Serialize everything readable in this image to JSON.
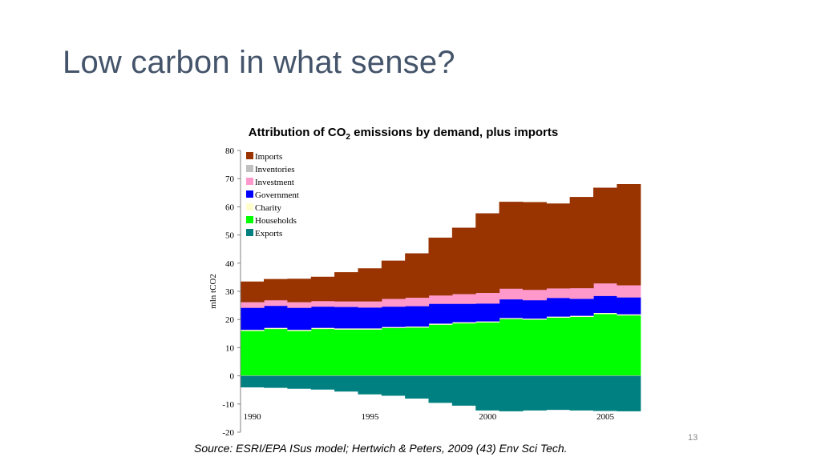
{
  "slide": {
    "title": "Low carbon in what sense?",
    "source": "Source: ESRI/EPA ISus model; Hertwich & Peters, 2009 (43) Env Sci Tech.",
    "page_number": "13"
  },
  "chart_data": {
    "type": "area",
    "title": "Attribution of CO",
    "title_subscript": "2",
    "title_rest": " emissions by demand, plus imports",
    "ylabel": "mln tCO2",
    "xlabel": "",
    "ylim": [
      -20,
      80
    ],
    "yticks": [
      80,
      70,
      60,
      50,
      40,
      30,
      20,
      10,
      0,
      -10,
      -20
    ],
    "xtick_labels": [
      {
        "year": 1990,
        "label": "1990"
      },
      {
        "year": 1995,
        "label": "1995"
      },
      {
        "year": 2000,
        "label": "2000"
      },
      {
        "year": 2005,
        "label": "2005"
      }
    ],
    "x": [
      1990,
      1991,
      1992,
      1993,
      1994,
      1995,
      1996,
      1997,
      1998,
      1999,
      2000,
      2001,
      2002,
      2003,
      2004,
      2005,
      2006
    ],
    "legend_position": "top-left",
    "series": [
      {
        "name": "Exports",
        "color": "#008080",
        "values": [
          -4,
          -4.2,
          -4.5,
          -4.8,
          -5.5,
          -6.5,
          -7,
          -8,
          -9.5,
          -10.5,
          -12.2,
          -12.5,
          -12.2,
          -12,
          -12.2,
          -12.4,
          -12.5
        ]
      },
      {
        "name": "Households",
        "color": "#00ff00",
        "values": [
          16,
          16.7,
          16,
          16.7,
          16.5,
          16.5,
          17,
          17.2,
          18.2,
          18.7,
          19,
          20.2,
          20,
          20.7,
          21,
          22,
          21.5
        ]
      },
      {
        "name": "Charity",
        "color": "#ffffcc",
        "values": [
          0.4,
          0.4,
          0.4,
          0.4,
          0.4,
          0.4,
          0.4,
          0.4,
          0.4,
          0.4,
          0.4,
          0.4,
          0.4,
          0.4,
          0.4,
          0.4,
          0.4
        ]
      },
      {
        "name": "Government",
        "color": "#0000ff",
        "values": [
          7.8,
          7.8,
          7.8,
          7.5,
          7.6,
          7.4,
          7.2,
          7.2,
          7,
          6.5,
          6.3,
          6.6,
          6.5,
          6.6,
          6,
          6,
          6
        ]
      },
      {
        "name": "Investment",
        "color": "#ff99cc",
        "values": [
          2,
          2,
          2,
          2,
          2,
          2.2,
          2.8,
          3,
          3,
          3.5,
          3.8,
          3.8,
          3.7,
          3.4,
          3.8,
          4.5,
          4.3
        ]
      },
      {
        "name": "Inventories",
        "color": "#c0c0c0",
        "values": [
          0,
          0,
          0,
          0,
          0,
          0,
          0,
          0,
          0,
          0,
          0,
          0,
          0,
          0,
          0,
          0,
          0
        ]
      },
      {
        "name": "Imports",
        "color": "#993300",
        "values": [
          7.2,
          7.4,
          8.2,
          8.5,
          10.2,
          11.6,
          13.4,
          15.6,
          20.4,
          23.4,
          28.1,
          30.7,
          31,
          30,
          32.2,
          33.8,
          35.8
        ]
      }
    ]
  }
}
